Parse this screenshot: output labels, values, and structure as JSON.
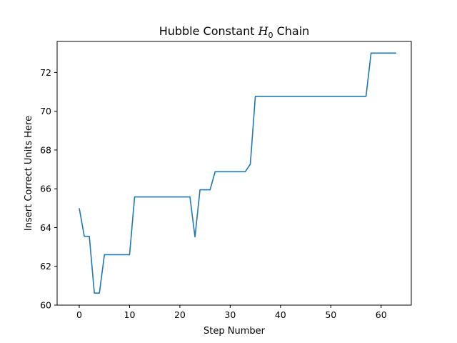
{
  "chart_data": {
    "type": "line",
    "title_prefix": "Hubble Constant ",
    "title_symbol": "H",
    "title_subscript": "0",
    "title_suffix": " Chain",
    "xlabel": "Step Number",
    "ylabel": "Insert Correct Units Here",
    "xlim": [
      -4.4,
      66
    ],
    "ylim": [
      60,
      73.6
    ],
    "xticks": [
      0,
      10,
      20,
      30,
      40,
      50,
      60
    ],
    "yticks": [
      60,
      62,
      64,
      66,
      68,
      70,
      72
    ],
    "grid": false,
    "line_color": "#1f77b4",
    "series": [
      {
        "x": [
          0,
          1,
          2,
          3,
          4,
          5,
          6,
          7,
          8,
          9,
          10,
          11,
          12,
          13,
          14,
          15,
          16,
          17,
          18,
          19,
          20,
          21,
          22,
          23,
          24,
          25,
          26,
          27,
          28,
          29,
          30,
          31,
          32,
          33,
          34,
          35,
          36,
          37,
          38,
          39,
          40,
          41,
          42,
          43,
          44,
          45,
          46,
          47,
          48,
          49,
          50,
          51,
          52,
          53,
          54,
          55,
          56,
          57,
          58,
          59,
          60,
          61,
          62,
          63
        ],
        "values": [
          65.0,
          63.55,
          63.55,
          60.62,
          60.62,
          62.6,
          62.6,
          62.6,
          62.6,
          62.6,
          62.6,
          65.58,
          65.58,
          65.58,
          65.58,
          65.58,
          65.58,
          65.58,
          65.58,
          65.58,
          65.58,
          65.58,
          65.58,
          63.52,
          65.95,
          65.95,
          65.95,
          66.88,
          66.88,
          66.88,
          66.88,
          66.88,
          66.88,
          66.88,
          67.27,
          70.77,
          70.77,
          70.77,
          70.77,
          70.77,
          70.77,
          70.77,
          70.77,
          70.77,
          70.77,
          70.77,
          70.77,
          70.77,
          70.77,
          70.77,
          70.77,
          70.77,
          70.77,
          70.77,
          70.77,
          70.77,
          70.77,
          70.77,
          73.0,
          73.0,
          73.0,
          73.0,
          73.0,
          73.0
        ]
      }
    ]
  }
}
